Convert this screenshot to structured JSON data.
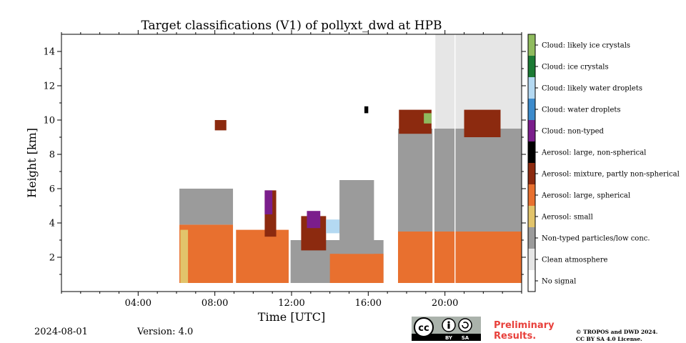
{
  "chart_data": {
    "type": "heatmap",
    "title": "Target classifications (V1) of pollyxt_dwd at HPB",
    "xlabel": "Time [UTC]",
    "ylabel": "Height [km]",
    "xlim_hours": [
      0,
      24
    ],
    "ylim_km": [
      0,
      15
    ],
    "x_ticks": [
      {
        "h": 4,
        "label": "04:00"
      },
      {
        "h": 8,
        "label": "08:00"
      },
      {
        "h": 12,
        "label": "12:00"
      },
      {
        "h": 16,
        "label": "16:00"
      },
      {
        "h": 20,
        "label": "20:00"
      }
    ],
    "y_ticks": [
      {
        "v": 2,
        "label": "2"
      },
      {
        "v": 4,
        "label": "4"
      },
      {
        "v": 6,
        "label": "6"
      },
      {
        "v": 8,
        "label": "8"
      },
      {
        "v": 10,
        "label": "10"
      },
      {
        "v": 12,
        "label": "12"
      },
      {
        "v": 14,
        "label": "14"
      }
    ],
    "categories": [
      {
        "id": 0,
        "label": "No signal",
        "color": "#ffffff"
      },
      {
        "id": 1,
        "label": "Clean atmosphere",
        "color": "#e6e6e6"
      },
      {
        "id": 2,
        "label": "Non-typed particles/low conc.",
        "color": "#9b9b9b"
      },
      {
        "id": 3,
        "label": "Aerosol: small",
        "color": "#e2c46b"
      },
      {
        "id": 4,
        "label": "Aerosol: large, spherical",
        "color": "#e8702f"
      },
      {
        "id": 5,
        "label": "Aerosol: mixture, partly non-spherical",
        "color": "#8c2a0f"
      },
      {
        "id": 6,
        "label": "Aerosol: large, non-spherical",
        "color": "#000000"
      },
      {
        "id": 7,
        "label": "Cloud: non-typed",
        "color": "#7b1e8c"
      },
      {
        "id": 8,
        "label": "Cloud: water droplets",
        "color": "#3d8bcc"
      },
      {
        "id": 9,
        "label": "Cloud: likely water droplets",
        "color": "#b4d9f2"
      },
      {
        "id": 10,
        "label": "Cloud: ice crystals",
        "color": "#1b7a34"
      },
      {
        "id": 11,
        "label": "Cloud: likely ice crystals",
        "color": "#8fbb5e"
      }
    ],
    "data_gaps_hours": [
      [
        0,
        6.15
      ],
      [
        8.95,
        9.1
      ],
      [
        11.85,
        11.95
      ],
      [
        16.8,
        17.25
      ],
      [
        17.35,
        17.55
      ],
      [
        19.35,
        19.45
      ],
      [
        20.5,
        20.55
      ]
    ],
    "regions": [
      {
        "cat": 4,
        "h": [
          6.15,
          8.95
        ],
        "z": [
          0.5,
          3.9
        ]
      },
      {
        "cat": 3,
        "h": [
          6.2,
          6.6
        ],
        "z": [
          0.5,
          3.6
        ]
      },
      {
        "cat": 2,
        "h": [
          6.15,
          8.95
        ],
        "z": [
          3.9,
          6.0
        ]
      },
      {
        "cat": 2,
        "h": [
          9.1,
          16.8
        ],
        "z": [
          0.5,
          3.0
        ]
      },
      {
        "cat": 4,
        "h": [
          9.1,
          11.85
        ],
        "z": [
          0.5,
          3.6
        ]
      },
      {
        "cat": 5,
        "h": [
          10.6,
          11.2
        ],
        "z": [
          3.2,
          5.9
        ]
      },
      {
        "cat": 7,
        "h": [
          10.6,
          11.0
        ],
        "z": [
          4.5,
          5.9
        ]
      },
      {
        "cat": 5,
        "h": [
          12.5,
          13.8
        ],
        "z": [
          2.4,
          4.4
        ]
      },
      {
        "cat": 7,
        "h": [
          12.8,
          13.5
        ],
        "z": [
          3.7,
          4.7
        ]
      },
      {
        "cat": 9,
        "h": [
          13.8,
          14.8
        ],
        "z": [
          3.4,
          4.2
        ]
      },
      {
        "cat": 4,
        "h": [
          14.0,
          16.8
        ],
        "z": [
          0.5,
          2.2
        ]
      },
      {
        "cat": 2,
        "h": [
          14.5,
          16.3
        ],
        "z": [
          2.2,
          6.5
        ]
      },
      {
        "cat": 4,
        "h": [
          17.55,
          24
        ],
        "z": [
          0.5,
          3.5
        ]
      },
      {
        "cat": 2,
        "h": [
          17.55,
          24
        ],
        "z": [
          3.5,
          9.5
        ]
      },
      {
        "cat": 1,
        "h": [
          19.5,
          24
        ],
        "z": [
          9.5,
          15
        ]
      },
      {
        "cat": 5,
        "h": [
          17.6,
          19.3
        ],
        "z": [
          9.2,
          10.6
        ]
      },
      {
        "cat": 11,
        "h": [
          18.9,
          19.3
        ],
        "z": [
          9.8,
          10.4
        ]
      },
      {
        "cat": 5,
        "h": [
          21.0,
          22.9
        ],
        "z": [
          9.0,
          10.6
        ]
      },
      {
        "cat": 5,
        "h": [
          8.0,
          8.6
        ],
        "z": [
          9.4,
          10.0
        ]
      },
      {
        "cat": 6,
        "h": [
          15.8,
          16.0
        ],
        "z": [
          10.4,
          10.8
        ]
      }
    ]
  },
  "footer": {
    "date": "2024-08-01",
    "version": "Version: 4.0",
    "cc_label_cc": "cc",
    "cc_label_by": "BY",
    "cc_label_sa": "SA",
    "preliminary_line1": "Preliminary",
    "preliminary_line2": "Results.",
    "copyright_line1": "© TROPOS and DWD 2024.",
    "copyright_line2": "CC BY SA 4.0 License."
  }
}
